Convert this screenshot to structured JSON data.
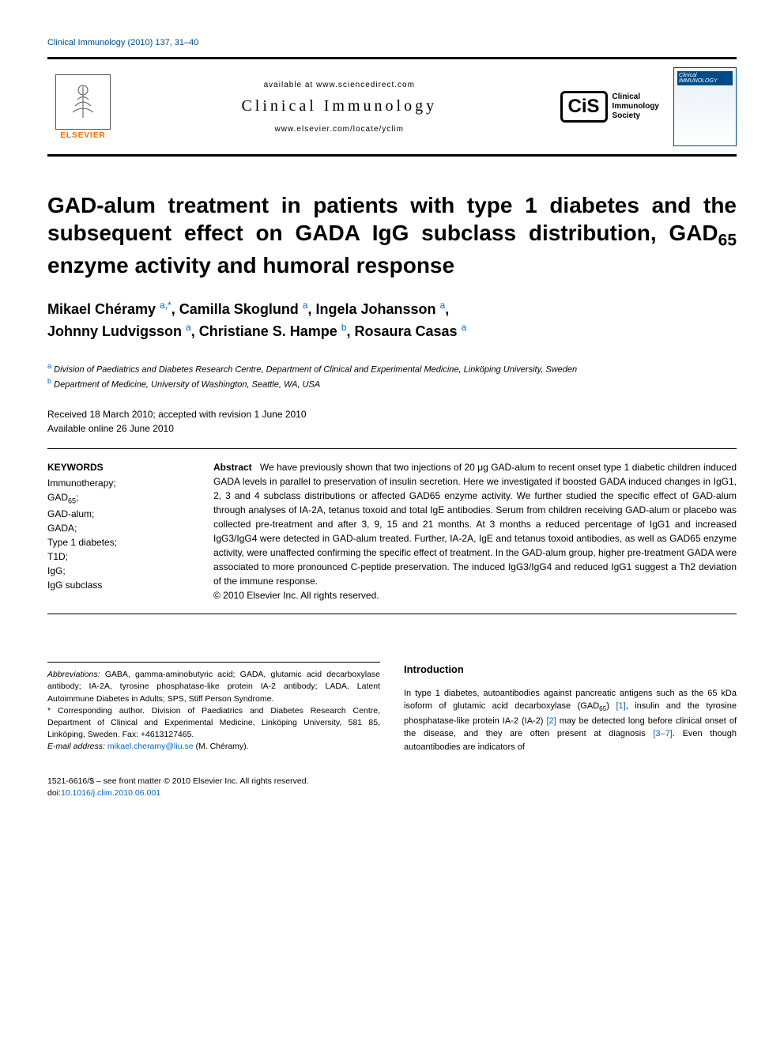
{
  "running_head": "Clinical Immunology (2010) 137, 31–40",
  "masthead": {
    "available": "available at www.sciencedirect.com",
    "journal": "Clinical Immunology",
    "url": "www.elsevier.com/locate/yclim",
    "publisher": "ELSEVIER",
    "cis_line1": "Clinical",
    "cis_line2": "Immunology",
    "cis_line3": "Society",
    "cover_label": "Clinical IMMUNOLOGY"
  },
  "title_parts": {
    "pre": "GAD-alum treatment in patients with type 1 diabetes and the subsequent effect on GADA IgG subclass distribution, GAD",
    "sub": "65",
    "post": " enzyme activity and humoral response"
  },
  "authors": [
    {
      "name": "Mikael Chéramy",
      "marks": "a,*"
    },
    {
      "name": "Camilla Skoglund",
      "marks": "a"
    },
    {
      "name": "Ingela Johansson",
      "marks": "a"
    },
    {
      "name": "Johnny Ludvigsson",
      "marks": "a"
    },
    {
      "name": "Christiane S. Hampe",
      "marks": "b"
    },
    {
      "name": "Rosaura Casas",
      "marks": "a"
    }
  ],
  "affiliations": {
    "a": "Division of Paediatrics and Diabetes Research Centre, Department of Clinical and Experimental Medicine, Linköping University, Sweden",
    "b": "Department of Medicine, University of Washington, Seattle, WA, USA"
  },
  "dates": {
    "received": "Received 18 March 2010; accepted with revision 1 June 2010",
    "online": "Available online 26 June 2010"
  },
  "keywords_head": "KEYWORDS",
  "keywords": [
    "Immunotherapy;",
    "GAD65;",
    "GAD-alum;",
    "GADA;",
    "Type 1 diabetes;",
    "T1D;",
    "IgG;",
    "IgG subclass"
  ],
  "abstract_label": "Abstract",
  "abstract_body": "We have previously shown that two injections of 20 μg GAD-alum to recent onset type 1 diabetic children induced GADA levels in parallel to preservation of insulin secretion. Here we investigated if boosted GADA induced changes in IgG1, 2, 3 and 4 subclass distributions or affected GAD65 enzyme activity. We further studied the specific effect of GAD-alum through analyses of IA-2A, tetanus toxoid and total IgE antibodies. Serum from children receiving GAD-alum or placebo was collected pre-treatment and after 3, 9, 15 and 21 months. At 3 months a reduced percentage of IgG1 and increased IgG3/IgG4 were detected in GAD-alum treated. Further, IA-2A, IgE and tetanus toxoid antibodies, as well as GAD65 enzyme activity, were unaffected confirming the specific effect of treatment. In the GAD-alum group, higher pre-treatment GADA were associated to more pronounced C-peptide preservation. The induced IgG3/IgG4 and reduced IgG1 suggest a Th2 deviation of the immune response.",
  "copyright": "© 2010 Elsevier Inc. All rights reserved.",
  "footnotes": {
    "abbrev_label": "Abbreviations:",
    "abbrev_text": " GABA, gamma-aminobutyric acid; GADA, glutamic acid decarboxylase antibody; IA-2A, tyrosine phosphatase-like protein IA-2 antibody; LADA, Latent Autoimmune Diabetes in Adults; SPS, Stiff Person Syndrome.",
    "corr_text": "* Corresponding author. Division of Paediatrics and Diabetes Research Centre, Department of Clinical and Experimental Medicine, Linköping University, 581 85, Linköping, Sweden. Fax: +4613127465.",
    "email_label": "E-mail address:",
    "email": "mikael.cheramy@liu.se",
    "email_tail": " (M. Chéramy)."
  },
  "intro_head": "Introduction",
  "intro_body_1": "In type 1 diabetes, autoantibodies against pancreatic antigens such as the 65 kDa isoform of glutamic acid decarboxylase (GAD",
  "intro_sub": "65",
  "intro_body_2": ") ",
  "ref1": "[1]",
  "intro_body_3": ", insulin and the tyrosine phosphatase-like protein IA-2 (IA-2) ",
  "ref2": "[2]",
  "intro_body_4": " may be detected long before clinical onset of the disease, and they are often present at diagnosis ",
  "ref3": "[3–7]",
  "intro_body_5": ". Even though autoantibodies are indicators of",
  "doi": {
    "line1": "1521-6616/$ – see front matter © 2010 Elsevier Inc. All rights reserved.",
    "line2_pre": "doi:",
    "line2_link": "10.1016/j.clim.2010.06.001"
  },
  "colors": {
    "link": "#0066cc",
    "head": "#004b87",
    "elsevier": "#ff6600"
  }
}
